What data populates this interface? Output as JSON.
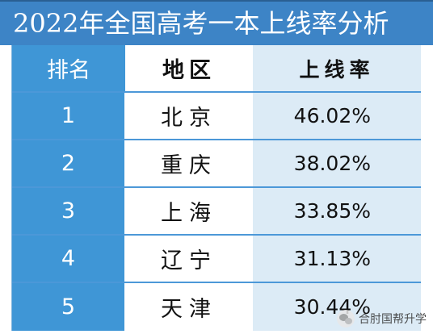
{
  "title": "2022年全国高考一本上线率分析",
  "table": {
    "headers": {
      "rank": "排名",
      "region": "地区",
      "rate": "上线率"
    },
    "rows": [
      {
        "rank": "1",
        "region": "北京",
        "rate": "46.02%"
      },
      {
        "rank": "2",
        "region": "重庆",
        "rate": "38.02%"
      },
      {
        "rank": "3",
        "region": "上海",
        "rate": "33.85%"
      },
      {
        "rank": "4",
        "region": "辽宁",
        "rate": "31.13%"
      },
      {
        "rank": "5",
        "region": "天津",
        "rate": "30.44%"
      }
    ]
  },
  "watermark": {
    "text": "合肘国帮升学",
    "icon": "wechat-icon"
  },
  "colors": {
    "title_bg": "#3d84c6",
    "rank_bg": "#3f96d6",
    "rate_bg": "#dcebf6",
    "grid_line": "#4c98d8"
  }
}
